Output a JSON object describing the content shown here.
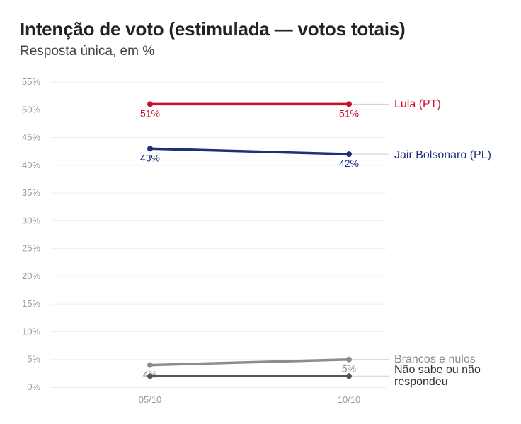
{
  "title": "Intenção de voto (estimulada — votos totais)",
  "subtitle": "Resposta única, em %",
  "chart_data": {
    "type": "line",
    "categories": [
      "05/10",
      "10/10"
    ],
    "ylim": [
      0,
      55
    ],
    "y_ticks": [
      "0%",
      "5%",
      "10%",
      "15%",
      "20%",
      "25%",
      "30%",
      "35%",
      "40%",
      "45%",
      "50%",
      "55%"
    ],
    "grid": true,
    "legend": "direct labels at right end of lines",
    "series": [
      {
        "name": "Lula (PT)",
        "values": [
          51,
          51
        ],
        "labels": [
          "51%",
          "51%"
        ],
        "color": "#c8102e"
      },
      {
        "name": "Jair Bolsonaro (PL)",
        "values": [
          43,
          42
        ],
        "labels": [
          "43%",
          "42%"
        ],
        "color": "#1f2f7a"
      },
      {
        "name": "Brancos e nulos",
        "values": [
          4,
          5
        ],
        "labels": [
          "4%",
          "5%"
        ],
        "color": "#8c8c8c"
      },
      {
        "name": "Não sabe ou não respondeu",
        "values": [
          2,
          2
        ],
        "labels": [
          "",
          ""
        ],
        "color": "#555555"
      }
    ]
  }
}
